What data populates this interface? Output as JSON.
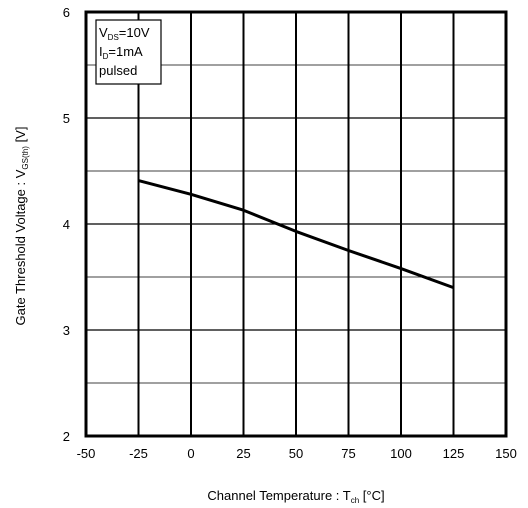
{
  "chart_data": {
    "type": "line",
    "title": "",
    "xlabel": {
      "prefix": "Channel Temperature :  T",
      "subscript": "ch",
      "suffix": " [°C]"
    },
    "ylabel": {
      "prefix": "Gate Threshold Voltage :  V",
      "subscript": "GS(th)",
      "suffix": " [V]"
    },
    "xlim": [
      -50,
      150
    ],
    "ylim": [
      2,
      6
    ],
    "x_ticks": [
      "-50",
      "-25",
      "0",
      "25",
      "50",
      "75",
      "100",
      "125",
      "150"
    ],
    "x_tick_values": [
      -50,
      -25,
      0,
      25,
      50,
      75,
      100,
      125,
      150
    ],
    "y_ticks": [
      "2",
      "3",
      "4",
      "5",
      "6"
    ],
    "y_tick_values": [
      2,
      3,
      4,
      5,
      6
    ],
    "grid": true,
    "grid_y_step": 0.5,
    "conditions": [
      {
        "prefix": "V",
        "subscript": "DS",
        "suffix": "=10V"
      },
      {
        "prefix": "I",
        "subscript": "D",
        "suffix": "=1mA"
      },
      {
        "prefix": "pulsed",
        "subscript": "",
        "suffix": ""
      }
    ],
    "series": [
      {
        "x": [
          -25,
          0,
          25,
          50,
          75,
          100,
          125
        ],
        "y": [
          4.41,
          4.28,
          4.13,
          3.93,
          3.75,
          3.58,
          3.4
        ]
      }
    ],
    "colors": {
      "line": "#000000",
      "grid": "#000000",
      "background": "#ffffff"
    }
  }
}
